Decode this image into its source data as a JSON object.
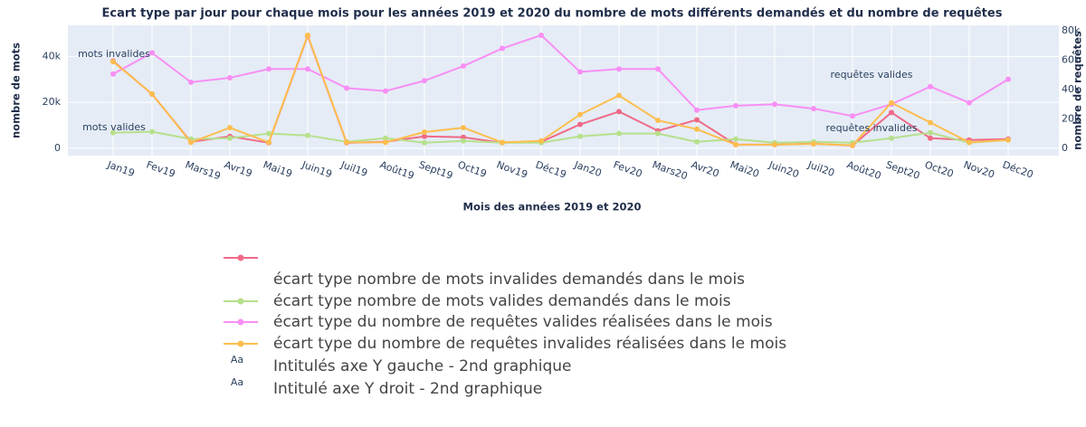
{
  "chart_data": {
    "type": "line",
    "title": "Ecart type par jour pour chaque mois pour les années 2019 et 2020 du nombre de mots différents demandés et du nombre de requêtes",
    "xlabel": "Mois des années 2019 et 2020",
    "ylabel": "nombre de mots",
    "y2label": "nombre de requêtes",
    "categories": [
      "Jan19",
      "Fev19",
      "Mars19",
      "Avr19",
      "Mai19",
      "Juin19",
      "Juil19",
      "Août19",
      "Sept19",
      "Oct19",
      "Nov19",
      "Déc19",
      "Jan20",
      "Fev20",
      "Mars20",
      "Avr20",
      "Mai20",
      "Juin20",
      "Juil20",
      "Août20",
      "Sept20",
      "Oct20",
      "Nov20",
      "Déc20"
    ],
    "ylim": [
      -3200,
      53600
    ],
    "yticks": [
      0,
      {
        "value": 20000,
        "label": "20k"
      },
      {
        "value": 40000,
        "label": "40k"
      }
    ],
    "y2lim": [
      -5000,
      83750
    ],
    "y2ticks": [
      0,
      {
        "value": 20000,
        "label": "20k"
      },
      {
        "value": 40000,
        "label": "40k"
      },
      {
        "value": 60000,
        "label": "60k"
      },
      {
        "value": 80000,
        "label": "80k"
      }
    ],
    "grid": true,
    "series": [
      {
        "name": "écart type nombre de mots invalides demandés dans le mois",
        "color": "#ef6a87",
        "axis": "y",
        "values": [
          38000,
          23600,
          2800,
          5200,
          2400,
          49000,
          2400,
          2800,
          5200,
          4800,
          2400,
          2800,
          10400,
          16000,
          7600,
          12400,
          1600,
          1600,
          2000,
          1200,
          15600,
          4400,
          3600,
          4000
        ]
      },
      {
        "name": "écart type nombre de mots valides demandés dans le mois",
        "color": "#b6e08c",
        "axis": "y",
        "values": [
          6800,
          7200,
          4000,
          4400,
          6400,
          5600,
          2800,
          4400,
          2400,
          3200,
          2400,
          2400,
          5200,
          6400,
          6400,
          2800,
          4000,
          2400,
          2800,
          2400,
          4400,
          6800,
          2400,
          3600
        ]
      },
      {
        "name": "écart type du nombre de requêtes valides réalisées dans le mois",
        "color": "#f88ff4",
        "axis": "y2",
        "values": [
          50600,
          65000,
          45000,
          48000,
          54000,
          54000,
          41000,
          39000,
          46000,
          56000,
          68000,
          77000,
          52000,
          54000,
          54000,
          26000,
          29000,
          30000,
          27000,
          22000,
          30000,
          42000,
          31000,
          47000
        ]
      },
      {
        "name": "écart type du nombre de requêtes invalides réalisées dans le mois",
        "color": "#fdbe4f",
        "axis": "y2",
        "values": [
          59000,
          37000,
          4000,
          14000,
          4000,
          77000,
          4000,
          4000,
          11000,
          14000,
          4000,
          5000,
          23000,
          36000,
          19000,
          13000,
          2500,
          2500,
          3000,
          2000,
          31000,
          17500,
          4000,
          5600
        ]
      }
    ],
    "annotations": [
      {
        "text": "mots invalides",
        "series": 0,
        "index": 0
      },
      {
        "text": "mots valides",
        "series": 1,
        "index": 0
      },
      {
        "text": "requêtes valides",
        "series": 2,
        "index": 19
      },
      {
        "text": "requêtes invalides",
        "series": 3,
        "index": 19
      }
    ],
    "extra_legend": [
      {
        "symbol": "Aa",
        "label": "Intitulés axe Y gauche - 2nd graphique"
      },
      {
        "symbol": "Aa",
        "label": "Intitulé axe Y droit - 2nd graphique"
      }
    ]
  }
}
